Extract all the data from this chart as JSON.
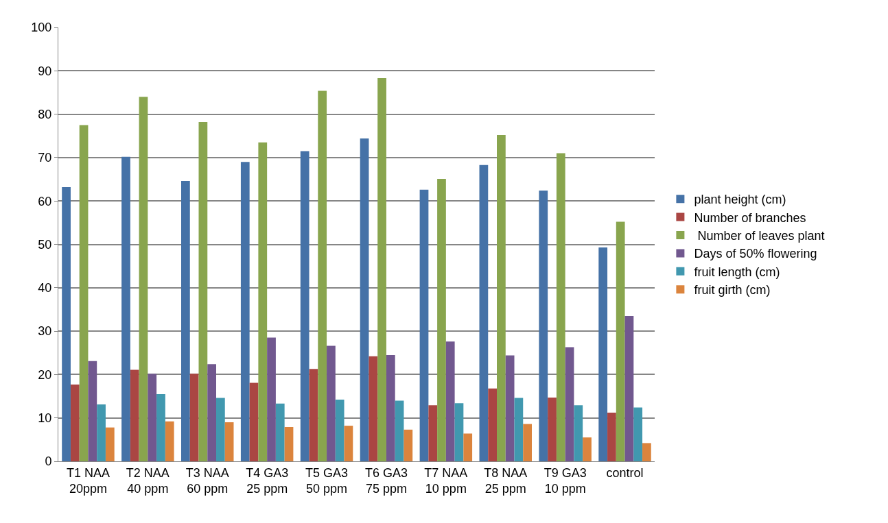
{
  "chart_data": {
    "type": "bar",
    "categories": [
      "T1 NAA 20ppm",
      "T2 NAA 40 ppm",
      "T3 NAA 60 ppm",
      "T4 GA3 25 ppm",
      "T5 GA3 50 ppm",
      "T6 GA3 75 ppm",
      "T7 NAA 10 ppm",
      "T8 NAA 25 ppm",
      "T9 GA3 10 ppm",
      "control"
    ],
    "series": [
      {
        "name": "plant height (cm)",
        "color": "#4572a7",
        "values": [
          63.2,
          70.2,
          64.6,
          69.0,
          71.5,
          74.4,
          62.6,
          68.3,
          62.4,
          49.3
        ]
      },
      {
        "name": "Number of branches",
        "color": "#aa4643",
        "values": [
          17.7,
          21.1,
          20.2,
          18.1,
          21.3,
          24.2,
          12.9,
          16.8,
          14.7,
          11.2
        ]
      },
      {
        "name": " Number of leaves plant",
        "color": "#89a54e",
        "values": [
          77.5,
          84.0,
          78.2,
          73.5,
          85.4,
          88.3,
          65.1,
          75.2,
          71.0,
          55.2
        ]
      },
      {
        "name": "Days of 50% flowering",
        "color": "#71588f",
        "values": [
          23.1,
          20.2,
          22.4,
          28.5,
          26.6,
          24.5,
          27.6,
          24.4,
          26.3,
          33.5
        ]
      },
      {
        "name": "fruit length (cm)",
        "color": "#4198af",
        "values": [
          13.1,
          15.5,
          14.6,
          13.3,
          14.2,
          14.0,
          13.4,
          14.6,
          12.9,
          12.4
        ]
      },
      {
        "name": "fruit girth (cm)",
        "color": "#db843d",
        "values": [
          7.8,
          9.2,
          9.0,
          7.9,
          8.2,
          7.3,
          6.4,
          8.6,
          5.5,
          4.2
        ]
      }
    ],
    "ylim": [
      0,
      100
    ],
    "yticks": [
      0,
      10,
      20,
      30,
      40,
      50,
      60,
      70,
      80,
      90,
      100
    ],
    "grid": "y",
    "legend": "right"
  }
}
